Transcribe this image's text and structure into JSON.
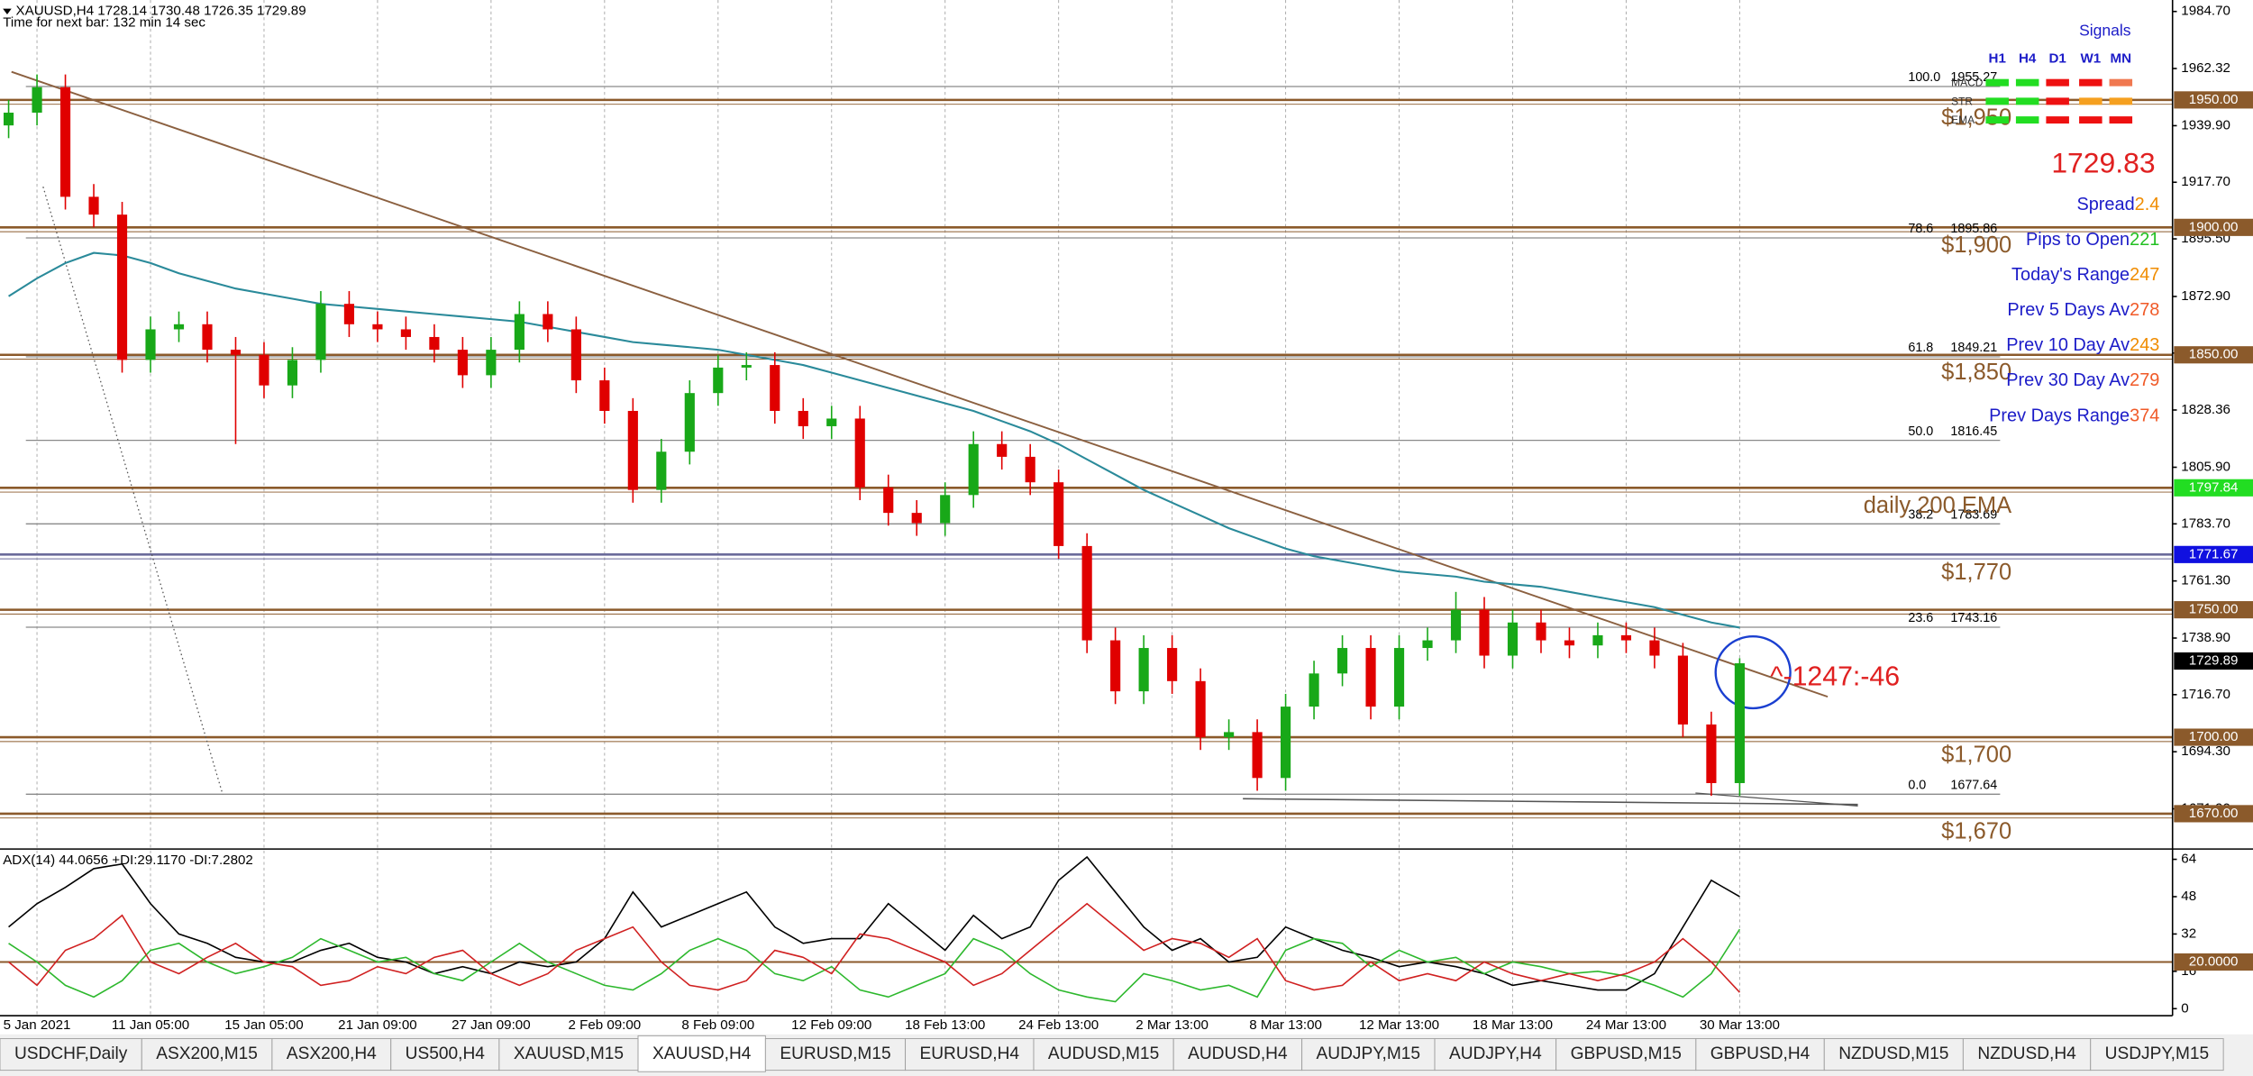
{
  "chart_data": [
    {
      "type": "candlestick",
      "title": "XAUUSD,H4  1728.14 1730.48 1726.35 1729.89",
      "subtitle": "Time for next bar: 132 min 14 sec",
      "categories": [
        null,
        "5 Jan 2021",
        null,
        null,
        null,
        "11 Jan 05:00",
        null,
        null,
        null,
        "15 Jan 05:00",
        null,
        null,
        null,
        "21 Jan 09:00",
        null,
        null,
        null,
        "27 Jan 09:00",
        null,
        null,
        null,
        "2 Feb 09:00",
        null,
        null,
        null,
        "8 Feb 09:00",
        null,
        null,
        null,
        "12 Feb 09:00",
        null,
        null,
        null,
        "18 Feb 13:00",
        null,
        null,
        null,
        "24 Feb 13:00",
        null,
        null,
        null,
        "2 Mar 13:00",
        null,
        null,
        null,
        "8 Mar 13:00",
        null,
        null,
        null,
        "12 Mar 13:00",
        null,
        null,
        null,
        "18 Mar 13:00",
        null,
        null,
        null,
        "24 Mar 13:00",
        null,
        null,
        null,
        "30 Mar 13:00"
      ],
      "open": [
        1940,
        1945,
        1955,
        1912,
        1905,
        1848,
        1860,
        1862,
        1852,
        1850,
        1838,
        1848,
        1870,
        1862,
        1860,
        1857,
        1852,
        1842,
        1852,
        1866,
        1860,
        1840,
        1828,
        1797,
        1812,
        1835,
        1845,
        1846,
        1828,
        1822,
        1825,
        1798,
        1788,
        1784,
        1795,
        1815,
        1810,
        1800,
        1775,
        1738,
        1718,
        1735,
        1722,
        1700,
        1702,
        1684,
        1712,
        1725,
        1735,
        1712,
        1735,
        1738,
        1750,
        1732,
        1745,
        1738,
        1736,
        1740,
        1738,
        1732,
        1705,
        1682
      ],
      "high": [
        1950,
        1960,
        1960,
        1917,
        1910,
        1865,
        1867,
        1867,
        1857,
        1855,
        1853,
        1875,
        1875,
        1867,
        1865,
        1862,
        1857,
        1857,
        1871,
        1871,
        1865,
        1845,
        1833,
        1817,
        1840,
        1850,
        1851,
        1851,
        1833,
        1830,
        1830,
        1803,
        1793,
        1800,
        1820,
        1820,
        1815,
        1805,
        1780,
        1743,
        1740,
        1740,
        1727,
        1707,
        1707,
        1717,
        1730,
        1740,
        1740,
        1740,
        1743,
        1757,
        1755,
        1750,
        1750,
        1743,
        1745,
        1745,
        1743,
        1737,
        1710,
        1731
      ],
      "low": [
        1935,
        1940,
        1907,
        1900,
        1843,
        1843,
        1855,
        1847,
        1815,
        1833,
        1833,
        1843,
        1857,
        1855,
        1852,
        1847,
        1837,
        1837,
        1847,
        1855,
        1835,
        1823,
        1792,
        1792,
        1807,
        1830,
        1840,
        1823,
        1817,
        1817,
        1793,
        1783,
        1779,
        1779,
        1790,
        1805,
        1795,
        1770,
        1733,
        1713,
        1713,
        1717,
        1695,
        1695,
        1679,
        1679,
        1707,
        1720,
        1707,
        1707,
        1730,
        1733,
        1727,
        1727,
        1733,
        1731,
        1731,
        1733,
        1727,
        1700,
        1677,
        1677
      ],
      "close": [
        1945,
        1955,
        1912,
        1905,
        1848,
        1860,
        1862,
        1852,
        1850,
        1838,
        1848,
        1870,
        1862,
        1860,
        1857,
        1852,
        1842,
        1852,
        1866,
        1860,
        1840,
        1828,
        1797,
        1812,
        1835,
        1845,
        1846,
        1828,
        1822,
        1825,
        1798,
        1788,
        1784,
        1795,
        1815,
        1810,
        1800,
        1775,
        1738,
        1718,
        1735,
        1722,
        1700,
        1702,
        1684,
        1712,
        1725,
        1735,
        1712,
        1735,
        1738,
        1750,
        1732,
        1745,
        1738,
        1736,
        1740,
        1738,
        1732,
        1705,
        1682,
        1729
      ],
      "up_color": "#18a818",
      "down_color": "#e00000",
      "ma": {
        "color": "#2a8a9a",
        "values": [
          1873,
          1880,
          1886,
          1890,
          1889,
          1886,
          1882,
          1879,
          1876,
          1874,
          1872,
          1870,
          1869,
          1868,
          1867,
          1866,
          1865,
          1864,
          1863,
          1861,
          1859,
          1857,
          1855,
          1854,
          1853,
          1852,
          1850,
          1848,
          1846,
          1843,
          1840,
          1837,
          1834,
          1831,
          1828,
          1824,
          1820,
          1815,
          1809,
          1803,
          1797,
          1792,
          1787,
          1782,
          1778,
          1774,
          1771,
          1769,
          1767,
          1765,
          1764,
          1763,
          1761,
          1760,
          1759,
          1757,
          1755,
          1753,
          1751,
          1748,
          1745,
          1743
        ]
      },
      "ylim": [
        1656.7,
        1989.2
      ],
      "yticks": [
        {
          "value": 1984.7,
          "label": "1984.70"
        },
        1962.32,
        {
          "value": 1939.9,
          "label": "1939.90"
        },
        {
          "value": 1917.7,
          "label": "1917.70"
        },
        {
          "value": 1895.5,
          "label": "1895.50"
        },
        {
          "value": 1872.9,
          "label": "1872.90"
        },
        {
          "value": 1850.7,
          "label": "1850.70"
        },
        1828.36,
        {
          "value": 1805.9,
          "label": "1805.90"
        },
        {
          "value": 1783.7,
          "label": "1783.70"
        },
        {
          "value": 1761.3,
          "label": "1761.30"
        },
        {
          "value": 1738.9,
          "label": "1738.90"
        },
        {
          "value": 1716.7,
          "label": "1716.70"
        },
        {
          "value": 1694.3,
          "label": "1694.30"
        },
        {
          "value": 1671.9,
          "label": "1671.90"
        }
      ],
      "grid": true,
      "levels": [
        {
          "value": 1950,
          "label": "1950.00",
          "note": "$1,950",
          "color": "#8b5a2b",
          "tag_color": "#8b5a2b"
        },
        {
          "value": 1900,
          "label": "1900.00",
          "note": "$1,900",
          "color": "#8b5a2b",
          "tag_color": "#8b5a2b"
        },
        {
          "value": 1850,
          "label": "1850.00",
          "note": "$1,850",
          "color": "#8b5a2b",
          "tag_color": "#8b5a2b"
        },
        {
          "value": 1797.84,
          "note": "daily 200 EMA",
          "color": "#8b5a2b",
          "tag_color": "#22dd22"
        },
        {
          "value": 1771.67,
          "note": "$1,770",
          "color": "#6a6a9a",
          "tag_color": "#1010e0"
        },
        {
          "value": 1750,
          "label": "1750.00",
          "color": "#8b5a2b",
          "tag_color": "#8b5a2b"
        },
        {
          "value": 1700,
          "label": "1700.00",
          "note": "$1,700",
          "color": "#8b5a2b",
          "tag_color": "#8b5a2b"
        },
        {
          "value": 1670,
          "label": "1670.00",
          "note": "$1,670",
          "color": "#8b5a2b",
          "tag_color": "#8b5a2b"
        }
      ],
      "fibonacci": {
        "color": "#8a8a8a",
        "levels": [
          {
            "level": "100.0",
            "price": 1955.27
          },
          {
            "level": "78.6",
            "price": 1895.86
          },
          {
            "level": "61.8",
            "price": 1849.21
          },
          {
            "level": "50.0",
            "price": 1816.45
          },
          {
            "level": "38.2",
            "price": 1783.69
          },
          {
            "level": "23.6",
            "price": 1743.16
          },
          {
            "level": "0.0",
            "price": 1677.64
          }
        ]
      },
      "last_price": 1729.89,
      "annotation": "^-1247:-46"
    },
    {
      "type": "line",
      "title": "ADX(14) 44.0656 +DI:29.1170 -DI:7.2802",
      "series": [
        {
          "color": "#000000",
          "values": [
            35,
            45,
            52,
            60,
            62,
            45,
            32,
            28,
            22,
            20,
            20,
            25,
            28,
            22,
            20,
            15,
            18,
            15,
            20,
            18,
            20,
            30,
            50,
            35,
            40,
            45,
            50,
            35,
            28,
            30,
            30,
            45,
            35,
            25,
            40,
            30,
            35,
            55,
            65,
            50,
            35,
            25,
            30,
            20,
            22,
            35,
            30,
            25,
            22,
            18,
            20,
            18,
            15,
            10,
            12,
            10,
            8,
            8,
            15,
            35,
            55,
            48
          ]
        },
        {
          "color": "#2db82d",
          "values": [
            28,
            20,
            10,
            5,
            12,
            25,
            28,
            20,
            15,
            18,
            22,
            30,
            25,
            20,
            22,
            15,
            12,
            20,
            28,
            20,
            15,
            10,
            8,
            15,
            25,
            30,
            25,
            15,
            12,
            18,
            8,
            5,
            10,
            15,
            30,
            25,
            15,
            8,
            5,
            3,
            15,
            12,
            8,
            10,
            5,
            25,
            30,
            28,
            18,
            25,
            20,
            22,
            15,
            20,
            18,
            15,
            16,
            14,
            10,
            5,
            15,
            34
          ]
        },
        {
          "color": "#d02020",
          "values": [
            20,
            10,
            25,
            30,
            40,
            20,
            15,
            22,
            28,
            20,
            18,
            10,
            12,
            18,
            15,
            22,
            25,
            15,
            10,
            15,
            25,
            30,
            35,
            20,
            10,
            8,
            12,
            25,
            22,
            15,
            32,
            30,
            25,
            20,
            10,
            15,
            25,
            35,
            45,
            35,
            25,
            30,
            28,
            22,
            30,
            12,
            8,
            10,
            20,
            12,
            15,
            12,
            20,
            15,
            12,
            15,
            12,
            15,
            20,
            30,
            20,
            7
          ]
        }
      ],
      "ylim": [
        -3,
        67.8
      ],
      "yticks": [
        64,
        48,
        32,
        16,
        0
      ],
      "level": {
        "value": 20,
        "label": "20.0000",
        "color": "#8b5a2b"
      }
    }
  ],
  "signals": {
    "title": "Signals",
    "columns": [
      "H1",
      "H4",
      "D1",
      "W1",
      "MN"
    ],
    "rows": [
      {
        "name": "MACD",
        "colors": [
          "#22dd22",
          "#22dd22",
          "#ee1111",
          "#ee1111",
          "#f07850"
        ]
      },
      {
        "name": "STR",
        "colors": [
          "#22dd22",
          "#22dd22",
          "#ee1111",
          "#f5a020",
          "#f5a020"
        ]
      },
      {
        "name": "EMA",
        "colors": [
          "#22dd22",
          "#22dd22",
          "#ee1111",
          "#ee1111",
          "#ee1111"
        ]
      }
    ],
    "price": 1729.83,
    "label_color": "#1c1cc8",
    "stats": [
      {
        "label": "Spread",
        "value": 2.4,
        "color": "#f08c00"
      },
      {
        "label": "Pips to Open",
        "value": 221,
        "color": "#22c022"
      },
      {
        "label": "Today's Range",
        "value": 247,
        "color": "#f08c00"
      },
      {
        "label": "Prev 5 Days Av",
        "value": 278,
        "color": "#f05a28"
      },
      {
        "label": "Prev 10 Day Av",
        "value": 243,
        "color": "#f08c00"
      },
      {
        "label": "Prev 30 Day Av",
        "value": 279,
        "color": "#f05a28"
      },
      {
        "label": "Prev Days Range",
        "value": 374,
        "color": "#f05a28"
      }
    ]
  },
  "tabs": {
    "active": 5,
    "items": [
      "USDCHF,Daily",
      "ASX200,M15",
      "ASX200,H4",
      "US500,H4",
      "XAUUSD,M15",
      "XAUUSD,H4",
      "EURUSD,M15",
      "EURUSD,H4",
      "AUDUSD,M15",
      "AUDUSD,H4",
      "AUDJPY,M15",
      "AUDJPY,H4",
      "GBPUSD,M15",
      "GBPUSD,H4",
      "NZDUSD,M15",
      "NZDUSD,H4",
      "USDJPY,M15"
    ]
  }
}
